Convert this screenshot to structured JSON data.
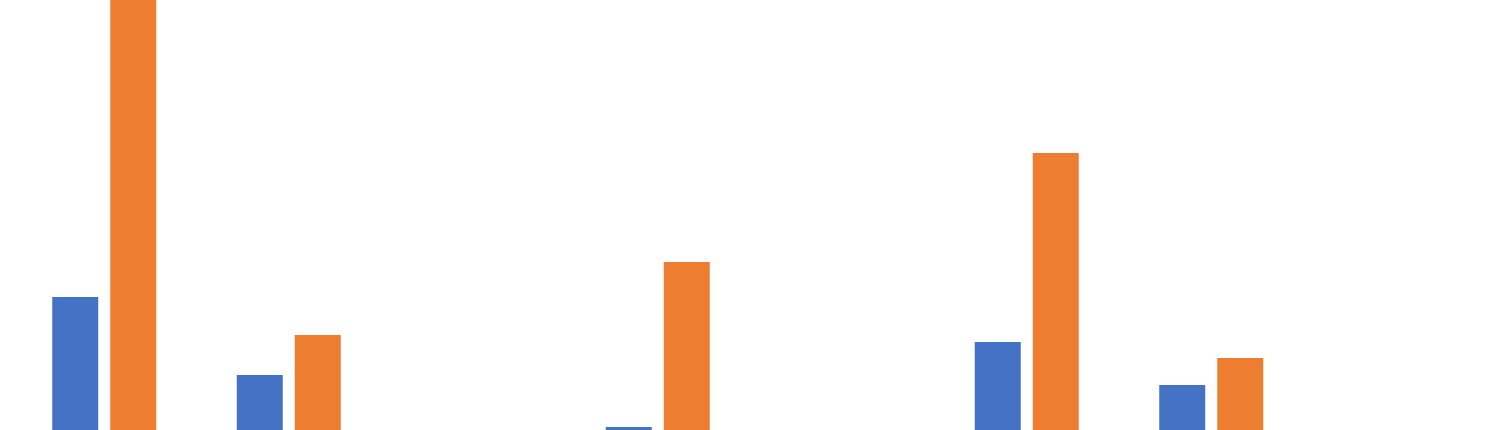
{
  "chart_data": {
    "type": "bar",
    "categories": [
      "",
      "",
      "",
      "",
      "",
      "",
      "",
      ""
    ],
    "series": [
      {
        "color": "#4472C4",
        "values": [
          133,
          55,
          0,
          3,
          0,
          88,
          45,
          0
        ]
      },
      {
        "color": "#ED7D31",
        "values": [
          432,
          95,
          0,
          168,
          0,
          277,
          72,
          0
        ]
      }
    ],
    "ylim": [
      0,
      430
    ],
    "grid": false,
    "legend": "none"
  }
}
